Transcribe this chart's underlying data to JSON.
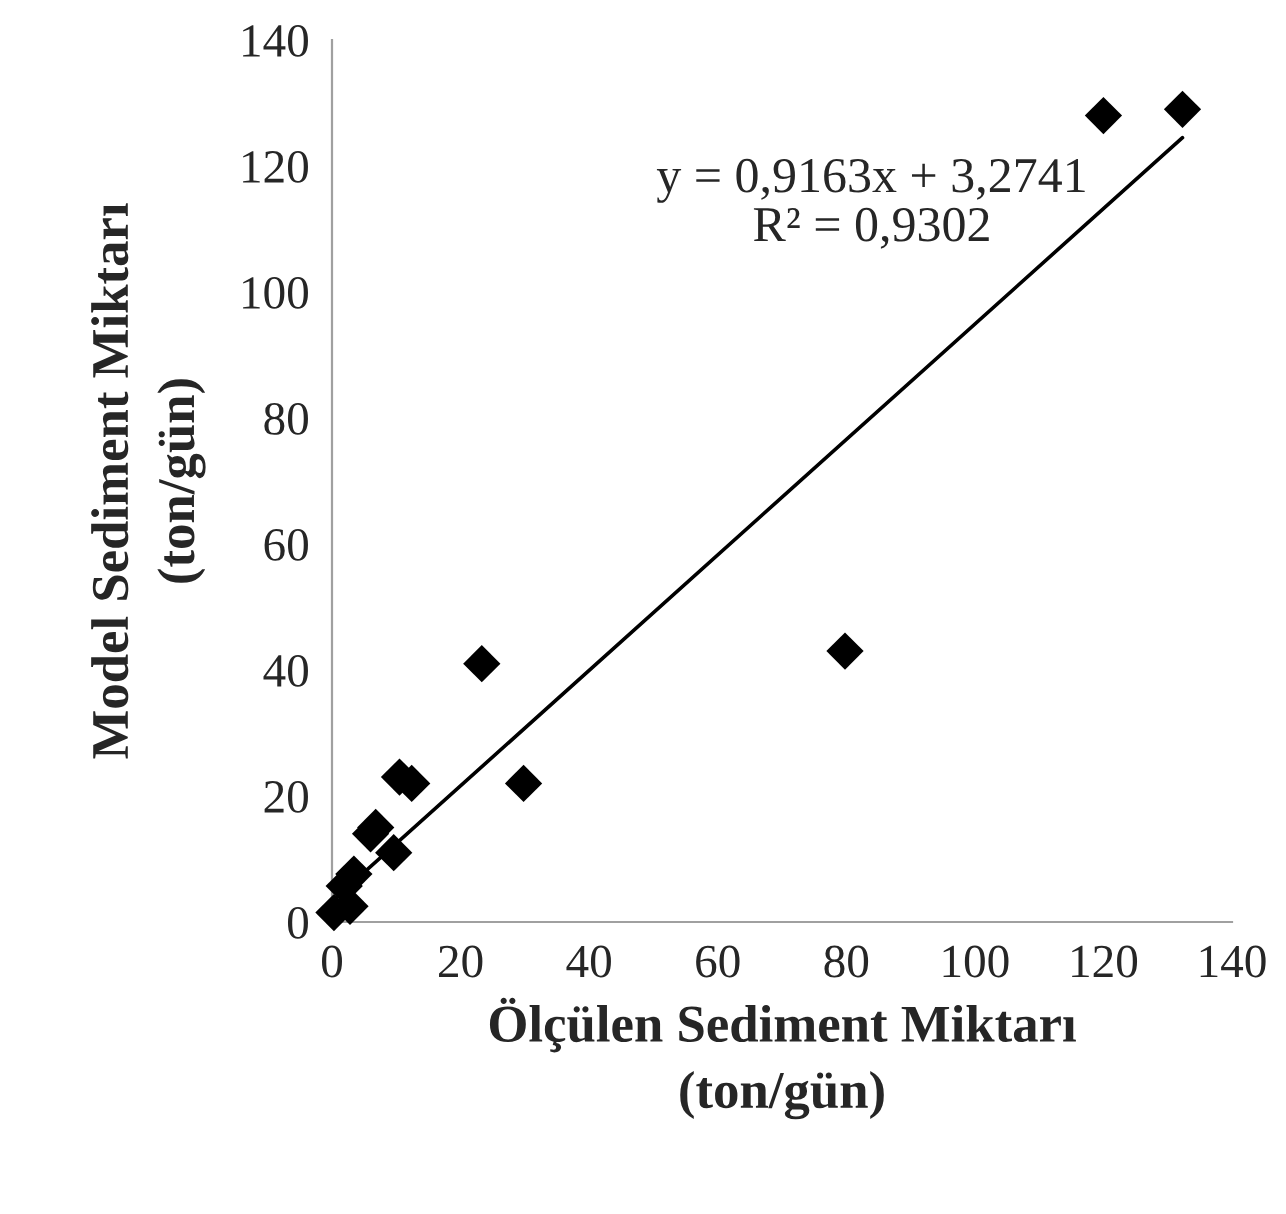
{
  "chart_data": {
    "type": "scatter",
    "xlabel": "Ölçülen Sediment Miktarı\n(ton/gün)",
    "ylabel": "Model Sediment Miktarı\n(ton/gün)",
    "xlim": [
      0,
      140
    ],
    "ylim": [
      0,
      140
    ],
    "xticks": [
      0,
      20,
      40,
      60,
      80,
      100,
      120,
      140
    ],
    "yticks": [
      0,
      20,
      40,
      60,
      80,
      100,
      120,
      140
    ],
    "grid": false,
    "series": [
      {
        "marker": "diamond",
        "color": "#000000",
        "x": [
          120,
          132.3,
          79.8,
          23.3,
          29.8,
          10.5,
          12.4,
          9.6,
          6,
          6.8,
          3.4,
          1.9,
          2.8,
          0.3
        ],
        "values": [
          128,
          129,
          43,
          41,
          22,
          23,
          22,
          11,
          14,
          15,
          7.6,
          5.7,
          2.5,
          1.5
        ]
      },
      {
        "type": "line",
        "color": "#000000",
        "x": [
          0,
          132.3
        ],
        "values": [
          3.3,
          124.5
        ]
      }
    ],
    "annotations": [
      "y = 0,9163x + 3,2741\nR² = 0,9302"
    ]
  }
}
